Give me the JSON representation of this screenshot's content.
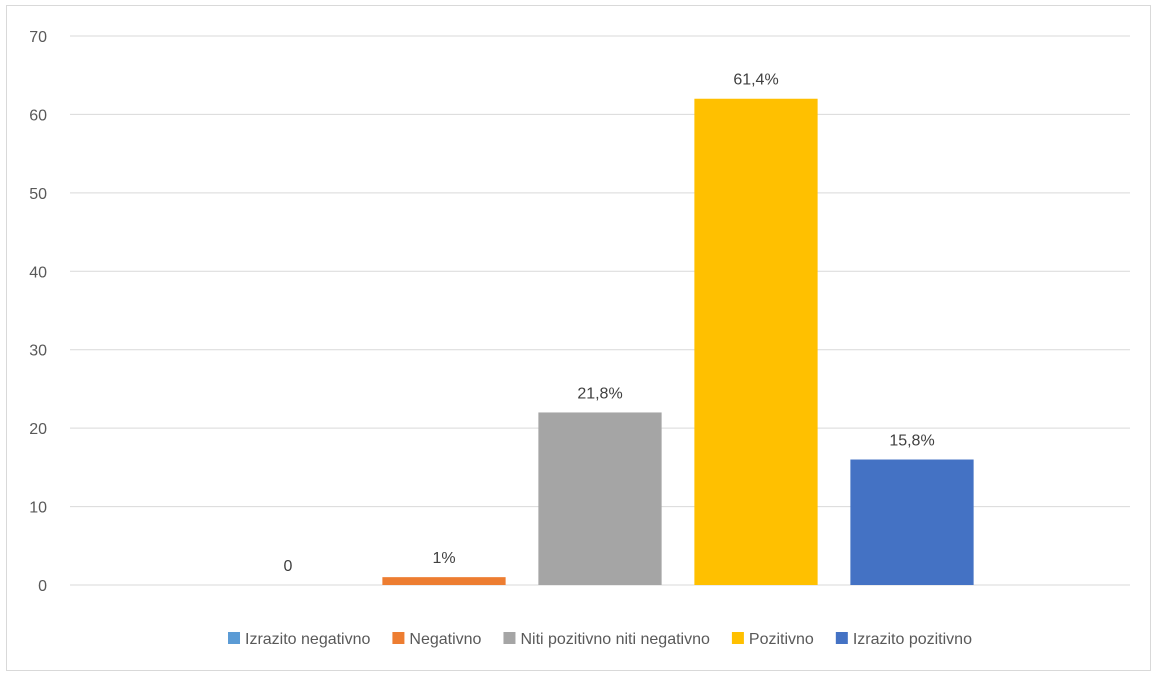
{
  "chart_data": {
    "type": "bar",
    "ylim": [
      0,
      70
    ],
    "yticks": [
      0,
      10,
      20,
      30,
      40,
      50,
      60,
      70
    ],
    "grid": true,
    "legend_position": "bottom",
    "series": [
      {
        "name": "Izrazito negativno",
        "value": 0,
        "label": "0",
        "color": "#5B9BD5"
      },
      {
        "name": "Negativno",
        "value": 1,
        "label": "1%",
        "color": "#ED7D31"
      },
      {
        "name": "Niti pozitivno niti negativno",
        "value": 22,
        "label": "21,8%",
        "color": "#A5A5A5"
      },
      {
        "name": "Pozitivno",
        "value": 62,
        "label": "61,4%",
        "color": "#FFC000"
      },
      {
        "name": "Izrazito pozitivno",
        "value": 16,
        "label": "15,8%",
        "color": "#4472C4"
      }
    ]
  }
}
